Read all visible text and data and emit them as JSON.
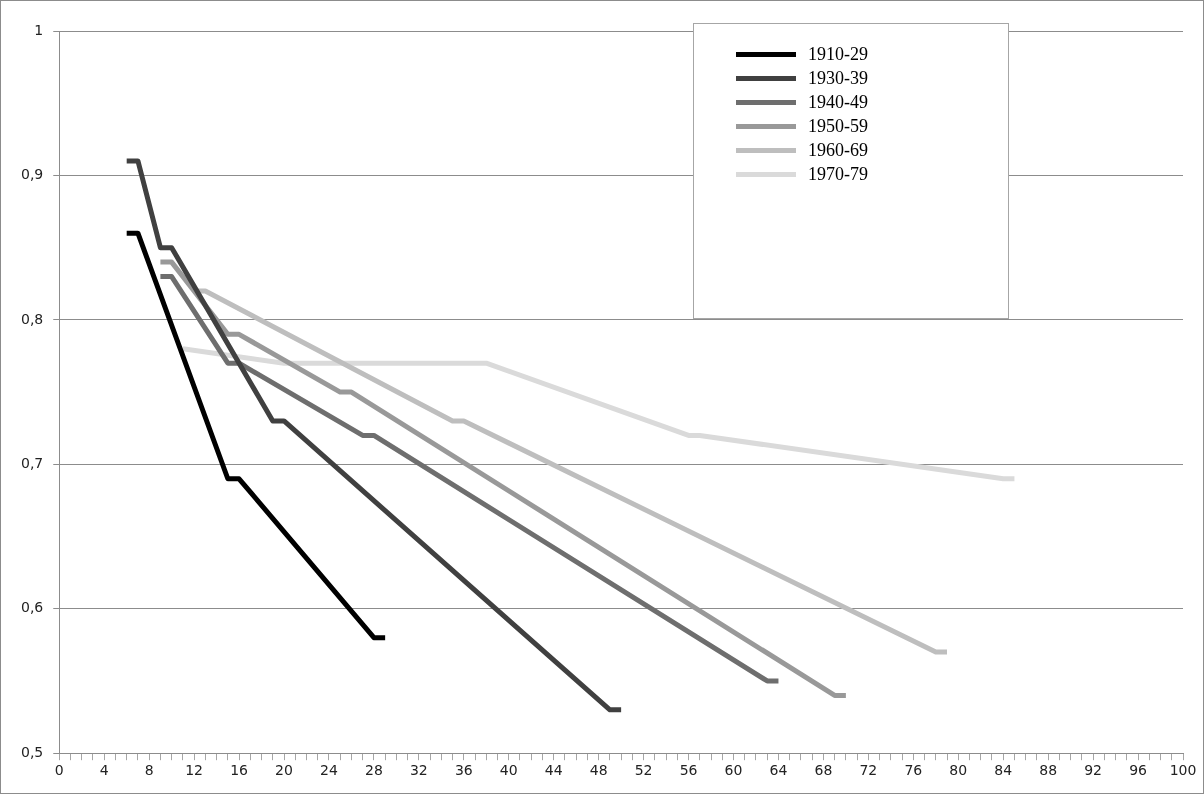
{
  "chart_data": {
    "type": "line",
    "xlim": [
      0,
      100
    ],
    "ylim": [
      0.5,
      1
    ],
    "xticks": [
      0,
      {
        "value": 1,
        "label": null
      },
      {
        "value": 2,
        "label": null
      },
      {
        "value": 3,
        "label": null
      },
      4,
      {
        "value": 5,
        "label": null
      },
      {
        "value": 6,
        "label": null
      },
      {
        "value": 7,
        "label": null
      },
      8,
      {
        "value": 9,
        "label": null
      },
      {
        "value": 10,
        "label": null
      },
      {
        "value": 11,
        "label": null
      },
      12,
      {
        "value": 13,
        "label": null
      },
      {
        "value": 14,
        "label": null
      },
      {
        "value": 15,
        "label": null
      },
      16,
      {
        "value": 17,
        "label": null
      },
      {
        "value": 18,
        "label": null
      },
      {
        "value": 19,
        "label": null
      },
      20,
      {
        "value": 21,
        "label": null
      },
      {
        "value": 22,
        "label": null
      },
      {
        "value": 23,
        "label": null
      },
      24,
      {
        "value": 25,
        "label": null
      },
      {
        "value": 26,
        "label": null
      },
      {
        "value": 27,
        "label": null
      },
      28,
      {
        "value": 29,
        "label": null
      },
      {
        "value": 30,
        "label": null
      },
      {
        "value": 31,
        "label": null
      },
      32,
      {
        "value": 33,
        "label": null
      },
      {
        "value": 34,
        "label": null
      },
      {
        "value": 35,
        "label": null
      },
      36,
      {
        "value": 37,
        "label": null
      },
      {
        "value": 38,
        "label": null
      },
      {
        "value": 39,
        "label": null
      },
      40,
      {
        "value": 41,
        "label": null
      },
      {
        "value": 42,
        "label": null
      },
      {
        "value": 43,
        "label": null
      },
      44,
      {
        "value": 45,
        "label": null
      },
      {
        "value": 46,
        "label": null
      },
      {
        "value": 47,
        "label": null
      },
      48,
      {
        "value": 49,
        "label": null
      },
      {
        "value": 50,
        "label": null
      },
      {
        "value": 51,
        "label": null
      },
      52,
      {
        "value": 53,
        "label": null
      },
      {
        "value": 54,
        "label": null
      },
      {
        "value": 55,
        "label": null
      },
      56,
      {
        "value": 57,
        "label": null
      },
      {
        "value": 58,
        "label": null
      },
      {
        "value": 59,
        "label": null
      },
      60,
      {
        "value": 61,
        "label": null
      },
      {
        "value": 62,
        "label": null
      },
      {
        "value": 63,
        "label": null
      },
      64,
      {
        "value": 65,
        "label": null
      },
      {
        "value": 66,
        "label": null
      },
      {
        "value": 67,
        "label": null
      },
      68,
      {
        "value": 69,
        "label": null
      },
      {
        "value": 70,
        "label": null
      },
      {
        "value": 71,
        "label": null
      },
      72,
      {
        "value": 73,
        "label": null
      },
      {
        "value": 74,
        "label": null
      },
      {
        "value": 75,
        "label": null
      },
      76,
      {
        "value": 77,
        "label": null
      },
      {
        "value": 78,
        "label": null
      },
      {
        "value": 79,
        "label": null
      },
      80,
      {
        "value": 81,
        "label": null
      },
      {
        "value": 82,
        "label": null
      },
      {
        "value": 83,
        "label": null
      },
      84,
      {
        "value": 85,
        "label": null
      },
      {
        "value": 86,
        "label": null
      },
      {
        "value": 87,
        "label": null
      },
      88,
      {
        "value": 89,
        "label": null
      },
      {
        "value": 90,
        "label": null
      },
      {
        "value": 91,
        "label": null
      },
      92,
      {
        "value": 93,
        "label": null
      },
      {
        "value": 94,
        "label": null
      },
      {
        "value": 95,
        "label": null
      },
      96,
      {
        "value": 97,
        "label": null
      },
      {
        "value": 98,
        "label": null
      },
      {
        "value": 99,
        "label": null
      },
      100
    ],
    "yticks": [
      {
        "value": 0.5,
        "label": "0,5"
      },
      {
        "value": 0.6,
        "label": "0,6"
      },
      {
        "value": 0.7,
        "label": "0,7"
      },
      {
        "value": 0.8,
        "label": "0,8"
      },
      {
        "value": 0.9,
        "label": "0,9"
      },
      1
    ],
    "grid": "y",
    "legend": "top right",
    "marker": "none",
    "line_style": "solid",
    "series": [
      {
        "name": "1910-29",
        "color": "#000000",
        "x": [
          6,
          7,
          15,
          16,
          28,
          29
        ],
        "values": [
          0.86,
          0.86,
          0.69,
          0.69,
          0.58,
          0.58
        ]
      },
      {
        "name": "1930-39",
        "color": "#404040",
        "x": [
          6,
          7,
          9,
          10,
          19,
          20,
          49,
          50
        ],
        "values": [
          0.91,
          0.91,
          0.85,
          0.85,
          0.73,
          0.73,
          0.53,
          0.53
        ]
      },
      {
        "name": "1940-49",
        "color": "#6e6e6e",
        "x": [
          9,
          10,
          15,
          16,
          27,
          28,
          63,
          64
        ],
        "values": [
          0.83,
          0.83,
          0.77,
          0.77,
          0.72,
          0.72,
          0.55,
          0.55
        ]
      },
      {
        "name": "1950-59",
        "color": "#999999",
        "x": [
          9,
          10,
          15,
          16,
          25,
          26,
          69,
          70
        ],
        "values": [
          0.84,
          0.84,
          0.79,
          0.79,
          0.75,
          0.75,
          0.54,
          0.54
        ]
      },
      {
        "name": "1960-69",
        "color": "#bebebe",
        "x": [
          12,
          13,
          35,
          36,
          78,
          79
        ],
        "values": [
          0.82,
          0.82,
          0.73,
          0.73,
          0.57,
          0.57
        ]
      },
      {
        "name": "1970-79",
        "color": "#dadada",
        "x": [
          11,
          20,
          38,
          56,
          57,
          84,
          85
        ],
        "values": [
          0.78,
          0.77,
          0.77,
          0.72,
          0.72,
          0.69,
          0.69
        ]
      }
    ]
  }
}
